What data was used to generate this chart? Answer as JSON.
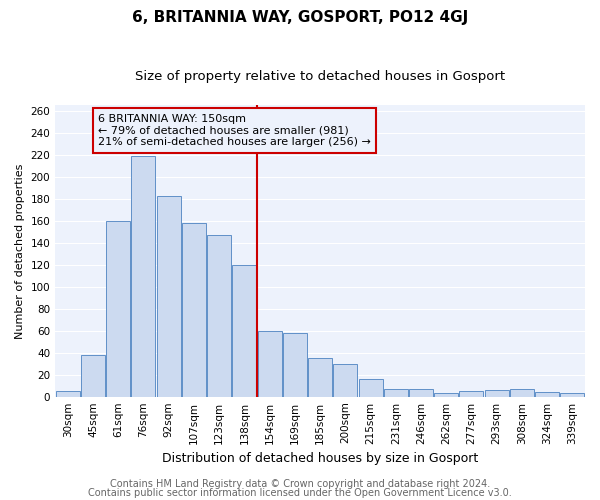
{
  "title": "6, BRITANNIA WAY, GOSPORT, PO12 4GJ",
  "subtitle": "Size of property relative to detached houses in Gosport",
  "xlabel": "Distribution of detached houses by size in Gosport",
  "ylabel": "Number of detached properties",
  "bar_labels": [
    "30sqm",
    "45sqm",
    "61sqm",
    "76sqm",
    "92sqm",
    "107sqm",
    "123sqm",
    "138sqm",
    "154sqm",
    "169sqm",
    "185sqm",
    "200sqm",
    "215sqm",
    "231sqm",
    "246sqm",
    "262sqm",
    "277sqm",
    "293sqm",
    "308sqm",
    "324sqm",
    "339sqm"
  ],
  "bar_values": [
    5,
    38,
    160,
    219,
    182,
    158,
    147,
    120,
    60,
    58,
    35,
    30,
    16,
    7,
    7,
    3,
    5,
    6,
    7,
    4,
    3
  ],
  "bar_color": "#ccdaf0",
  "bar_edgecolor": "#6090c8",
  "vline_color": "#cc0000",
  "annotation_title": "6 BRITANNIA WAY: 150sqm",
  "annotation_line1": "← 79% of detached houses are smaller (981)",
  "annotation_line2": "21% of semi-detached houses are larger (256) →",
  "annotation_box_edgecolor": "#cc0000",
  "ylim": [
    0,
    265
  ],
  "yticks": [
    0,
    20,
    40,
    60,
    80,
    100,
    120,
    140,
    160,
    180,
    200,
    220,
    240,
    260
  ],
  "footer1": "Contains HM Land Registry data © Crown copyright and database right 2024.",
  "footer2": "Contains public sector information licensed under the Open Government Licence v3.0.",
  "plot_bg_color": "#edf2fc",
  "fig_bg_color": "#ffffff",
  "grid_color": "#ffffff",
  "title_fontsize": 11,
  "subtitle_fontsize": 9.5,
  "xlabel_fontsize": 9,
  "ylabel_fontsize": 8,
  "tick_fontsize": 7.5,
  "footer_fontsize": 7,
  "ann_fontsize": 8
}
